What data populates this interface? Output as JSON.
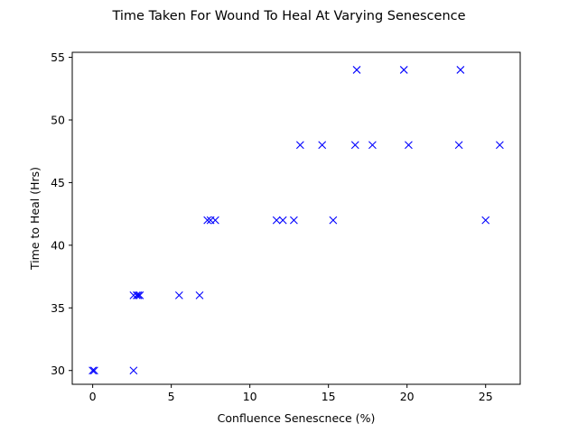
{
  "chart_data": {
    "type": "scatter",
    "title": "Time Taken For Wound To Heal At Varying Senescence",
    "xlabel": "Confluence Senescnece (%)",
    "ylabel": "Time to Heal (Hrs)",
    "xlim": [
      -1.3,
      27.2
    ],
    "ylim": [
      28.9,
      55.4
    ],
    "xticks": [
      0,
      5,
      10,
      15,
      20,
      25
    ],
    "yticks": [
      30,
      35,
      40,
      45,
      50,
      55
    ],
    "xtick_labels": [
      "0",
      "5",
      "10",
      "15",
      "20",
      "25"
    ],
    "ytick_labels": [
      "30",
      "35",
      "40",
      "45",
      "50",
      "55"
    ],
    "grid": false,
    "legend": "none",
    "marker": "x",
    "marker_color": "#0000ff",
    "series": [
      {
        "x": [
          0.0,
          0.1,
          2.6,
          2.6,
          2.8,
          2.9,
          3.0,
          5.5,
          6.8,
          7.3,
          7.5,
          7.8,
          11.7,
          12.1,
          12.8,
          15.3,
          25.0,
          13.2,
          14.6,
          16.7,
          17.8,
          20.1,
          23.3,
          25.9,
          16.8,
          19.8,
          23.4
        ],
        "y": [
          30,
          30,
          30,
          36,
          36,
          36,
          36,
          36,
          36,
          42,
          42,
          42,
          42,
          42,
          42,
          42,
          42,
          48,
          48,
          48,
          48,
          48,
          48,
          48,
          54,
          54,
          54
        ]
      }
    ]
  }
}
